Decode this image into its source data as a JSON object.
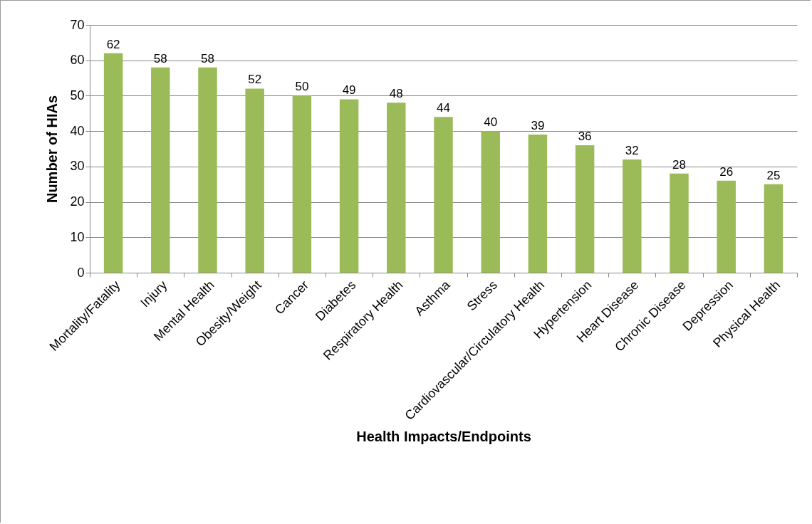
{
  "chart_data": {
    "type": "bar",
    "xlabel": "Health Impacts/Endpoints",
    "ylabel": "Number of HIAs",
    "categories": [
      "Mortality/Fatality",
      "Injury",
      "Mental Health",
      "Obesity/Weight",
      "Cancer",
      "Diabetes",
      "Respiratory Health",
      "Asthma",
      "Stress",
      "Cardiovascular/Circulatory Health",
      "Hypertension",
      "Heart Disease",
      "Chronic Disease",
      "Depression",
      "Physical Health"
    ],
    "values": [
      62,
      58,
      58,
      52,
      50,
      49,
      48,
      44,
      40,
      39,
      36,
      32,
      28,
      26,
      25
    ],
    "color": "#9bbb59",
    "ylim": [
      0,
      70
    ],
    "yticks": [
      0,
      10,
      20,
      30,
      40,
      50,
      60,
      70
    ],
    "grid": "y",
    "data_labels": true
  }
}
